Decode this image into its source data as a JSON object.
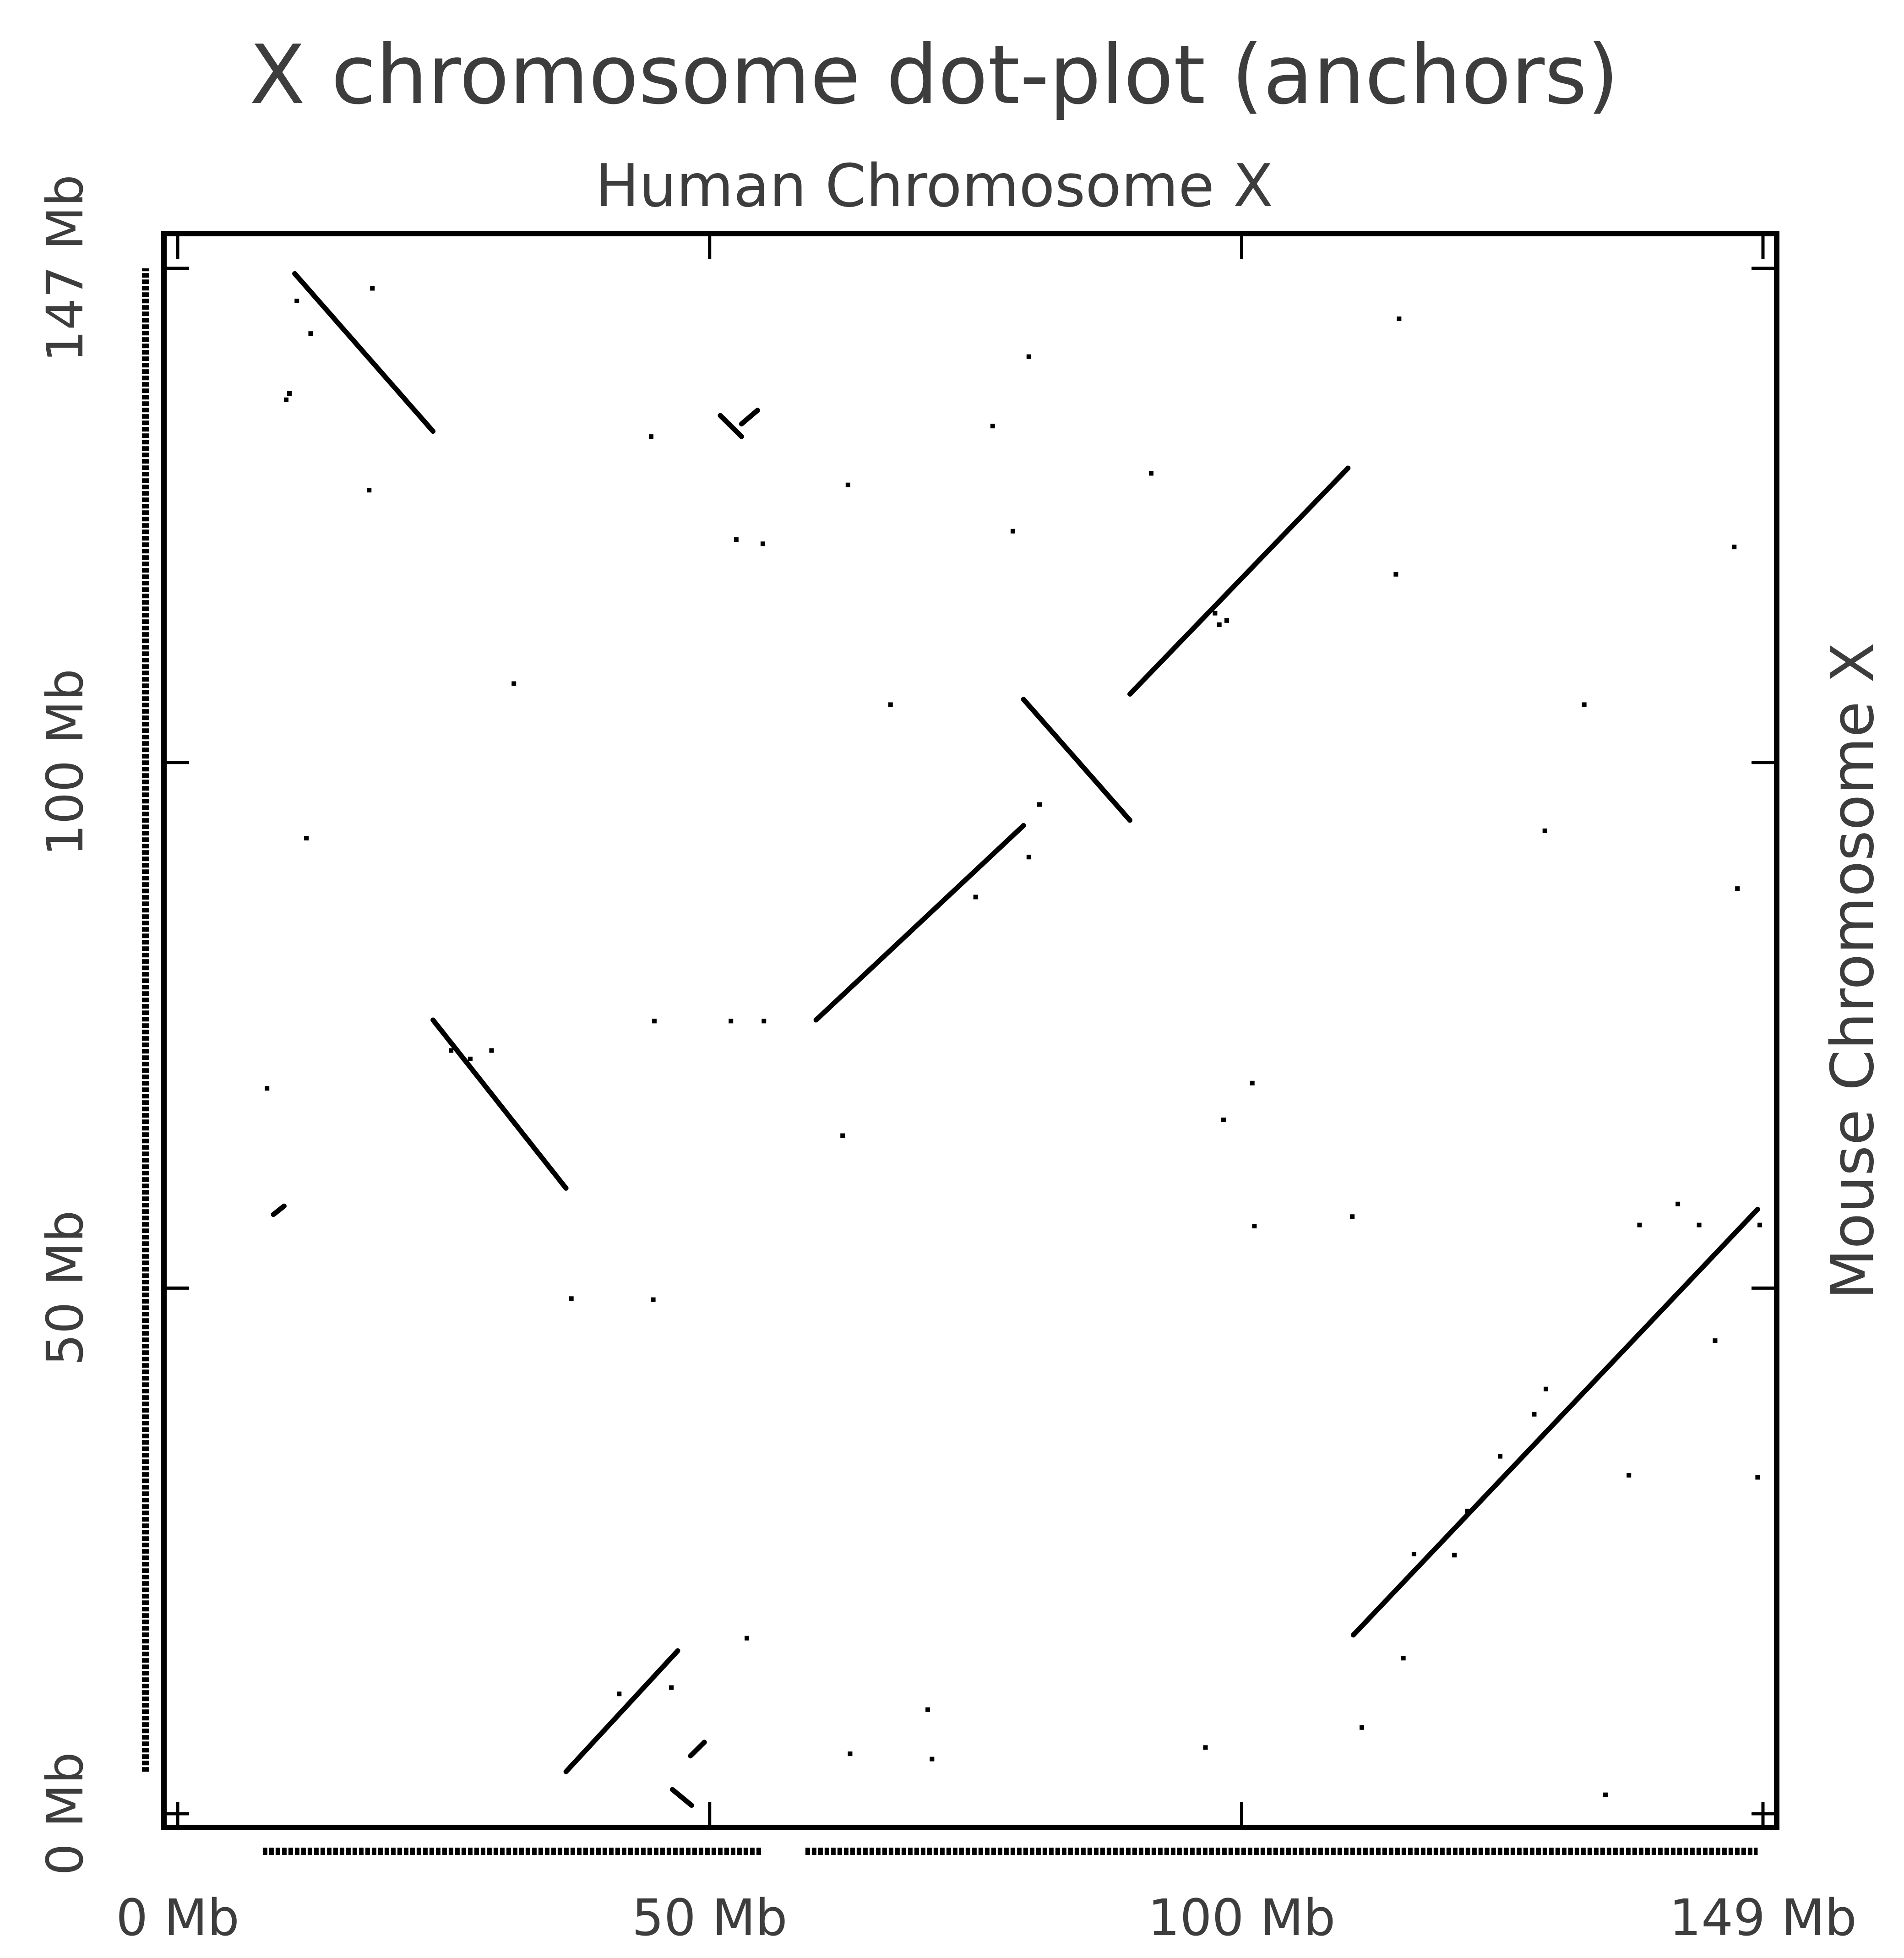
{
  "chart_data": {
    "type": "scatter",
    "title": "X chromosome dot-plot (anchors)",
    "subtitle": "Human Chromosome X",
    "xlabel": "",
    "ylabel": "Mouse Chromosome X",
    "xlim": [
      0,
      149
    ],
    "ylim": [
      0,
      149
    ],
    "grid": false,
    "x_ticks": [
      {
        "value": 0,
        "label": "0 Mb"
      },
      {
        "value": 50,
        "label": "50 Mb"
      },
      {
        "value": 100,
        "label": "100 Mb"
      },
      {
        "value": 149,
        "label": "149 Mb"
      }
    ],
    "y_ticks": [
      {
        "value": 0,
        "label": "0 Mb"
      },
      {
        "value": 50,
        "label": "50 Mb"
      },
      {
        "value": 100,
        "label": "100 Mb"
      },
      {
        "value": 147,
        "label": "147 Mb"
      }
    ],
    "segments": [
      {
        "x0": 11,
        "y0": 146.5,
        "x1": 24,
        "y1": 131.5
      },
      {
        "x0": 24,
        "y0": 75.5,
        "x1": 36.5,
        "y1": 59.5
      },
      {
        "x0": 9,
        "y0": 57,
        "x1": 10,
        "y1": 57.8
      },
      {
        "x0": 36.5,
        "y0": 4,
        "x1": 47,
        "y1": 15.5
      },
      {
        "x0": 48.2,
        "y0": 5.5,
        "x1": 49.5,
        "y1": 6.8
      },
      {
        "x0": 46.5,
        "y0": 2.3,
        "x1": 48.3,
        "y1": 0.8
      },
      {
        "x0": 51,
        "y0": 133,
        "x1": 53,
        "y1": 131
      },
      {
        "x0": 53,
        "y0": 132.2,
        "x1": 54.5,
        "y1": 133.5
      },
      {
        "x0": 60,
        "y0": 75.5,
        "x1": 79.5,
        "y1": 94
      },
      {
        "x0": 79.5,
        "y0": 106,
        "x1": 89.5,
        "y1": 94.5
      },
      {
        "x0": 89.5,
        "y0": 106.5,
        "x1": 110,
        "y1": 128
      },
      {
        "x0": 110.5,
        "y0": 17,
        "x1": 148.5,
        "y1": 57.5
      }
    ],
    "points": [
      {
        "x": 10.2,
        "y": 134.5
      },
      {
        "x": 10.5,
        "y": 135.1
      },
      {
        "x": 11.2,
        "y": 143.9
      },
      {
        "x": 12.5,
        "y": 140.8
      },
      {
        "x": 18.3,
        "y": 145.1
      },
      {
        "x": 18.0,
        "y": 125.9
      },
      {
        "x": 31.6,
        "y": 107.5
      },
      {
        "x": 12.1,
        "y": 92.8
      },
      {
        "x": 8.4,
        "y": 69.0
      },
      {
        "x": 25.7,
        "y": 72.6
      },
      {
        "x": 29.5,
        "y": 72.6
      },
      {
        "x": 27.5,
        "y": 71.8
      },
      {
        "x": 37.0,
        "y": 49.0
      },
      {
        "x": 44.7,
        "y": 48.9
      },
      {
        "x": 44.5,
        "y": 131.0
      },
      {
        "x": 44.8,
        "y": 75.4
      },
      {
        "x": 52.0,
        "y": 75.4
      },
      {
        "x": 55.1,
        "y": 75.4
      },
      {
        "x": 53.5,
        "y": 16.7
      },
      {
        "x": 52.5,
        "y": 121.2
      },
      {
        "x": 55.0,
        "y": 120.8
      },
      {
        "x": 63.0,
        "y": 126.4
      },
      {
        "x": 63.2,
        "y": 5.7
      },
      {
        "x": 62.5,
        "y": 64.5
      },
      {
        "x": 67.0,
        "y": 105.5
      },
      {
        "x": 70.5,
        "y": 9.9
      },
      {
        "x": 70.9,
        "y": 5.2
      },
      {
        "x": 76.6,
        "y": 132.0
      },
      {
        "x": 75.0,
        "y": 87.2
      },
      {
        "x": 78.5,
        "y": 122.0
      },
      {
        "x": 80.0,
        "y": 138.6
      },
      {
        "x": 80.0,
        "y": 91.0
      },
      {
        "x": 81.0,
        "y": 96.0
      },
      {
        "x": 91.5,
        "y": 127.5
      },
      {
        "x": 96.6,
        "y": 6.3
      },
      {
        "x": 98.3,
        "y": 66.0
      },
      {
        "x": 101.0,
        "y": 69.5
      },
      {
        "x": 101.2,
        "y": 55.9
      },
      {
        "x": 111.3,
        "y": 8.2
      },
      {
        "x": 114.5,
        "y": 117.9
      },
      {
        "x": 114.8,
        "y": 142.2
      },
      {
        "x": 115.2,
        "y": 14.8
      },
      {
        "x": 116.2,
        "y": 24.7
      },
      {
        "x": 120.0,
        "y": 24.6
      },
      {
        "x": 121.2,
        "y": 28.8
      },
      {
        "x": 124.3,
        "y": 34.0
      },
      {
        "x": 128.5,
        "y": 93.5
      },
      {
        "x": 127.5,
        "y": 38.0
      },
      {
        "x": 128.6,
        "y": 40.4
      },
      {
        "x": 134.2,
        "y": 1.8
      },
      {
        "x": 136.4,
        "y": 32.2
      },
      {
        "x": 132.2,
        "y": 105.5
      },
      {
        "x": 137.4,
        "y": 56.0
      },
      {
        "x": 141.0,
        "y": 58.0
      },
      {
        "x": 143.0,
        "y": 56.0
      },
      {
        "x": 144.5,
        "y": 45.0
      },
      {
        "x": 146.3,
        "y": 120.5
      },
      {
        "x": 146.6,
        "y": 88.0
      },
      {
        "x": 148.5,
        "y": 32.0
      },
      {
        "x": 148.7,
        "y": 56.0
      },
      {
        "x": 110.4,
        "y": 56.8
      },
      {
        "x": 97.9,
        "y": 113.1
      },
      {
        "x": 97.5,
        "y": 114.2
      },
      {
        "x": 98.6,
        "y": 113.5
      },
      {
        "x": 41.5,
        "y": 11.4
      },
      {
        "x": 46.4,
        "y": 12.0
      }
    ],
    "x_axis_anchors": [
      {
        "start": 8,
        "end": 55
      },
      {
        "start": 59,
        "end": 148.5
      }
    ],
    "y_axis_anchors": [
      {
        "start": 4,
        "end": 147
      }
    ]
  }
}
